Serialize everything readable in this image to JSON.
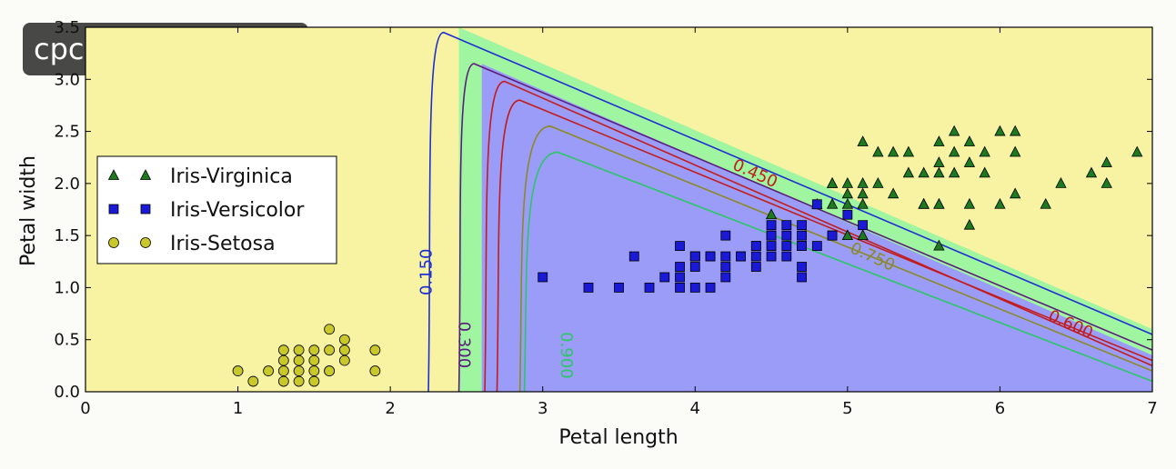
{
  "watermark": "cpc-jiuyou.com.cn",
  "chart_data": {
    "type": "scatter",
    "xlabel": "Petal length",
    "ylabel": "Petal width",
    "xlim": [
      0,
      7
    ],
    "ylim": [
      0,
      3.5
    ],
    "x_ticks": [
      "0",
      "1",
      "2",
      "3",
      "4",
      "5",
      "6",
      "7"
    ],
    "y_ticks": [
      "0.0",
      "0.5",
      "1.0",
      "1.5",
      "2.0",
      "2.5",
      "3.0",
      "3.5"
    ],
    "legend_position": "left",
    "decision_regions": [
      {
        "class": "Iris-Setosa",
        "color": "#f7f3a3"
      },
      {
        "class": "Iris-Versicolor",
        "color": "#9b9cf7"
      },
      {
        "class": "Iris-Virginica",
        "color": "#a0f5a0"
      }
    ],
    "contours": [
      {
        "label": "0.150",
        "color": "#1f2fd1"
      },
      {
        "label": "0.300",
        "color": "#5a1f7a"
      },
      {
        "label": "0.450",
        "color": "#c21d1d"
      },
      {
        "label": "0.600",
        "color": "#c21d1d"
      },
      {
        "label": "0.750",
        "color": "#8a8a2a"
      },
      {
        "label": "0.900",
        "color": "#2ec46a"
      }
    ],
    "series": [
      {
        "name": "Iris-Virginica",
        "marker": "triangle",
        "color": "#1e7a1e",
        "points": [
          [
            6.0,
            2.5
          ],
          [
            5.1,
            1.9
          ],
          [
            5.9,
            2.1
          ],
          [
            5.6,
            1.8
          ],
          [
            5.8,
            2.2
          ],
          [
            6.6,
            2.1
          ],
          [
            4.5,
            1.7
          ],
          [
            6.3,
            1.8
          ],
          [
            5.8,
            1.8
          ],
          [
            6.1,
            2.5
          ],
          [
            5.1,
            2.0
          ],
          [
            5.3,
            1.9
          ],
          [
            5.5,
            2.1
          ],
          [
            5.0,
            2.0
          ],
          [
            5.1,
            2.4
          ],
          [
            5.3,
            2.3
          ],
          [
            5.5,
            1.8
          ],
          [
            6.7,
            2.2
          ],
          [
            6.9,
            2.3
          ],
          [
            5.0,
            1.5
          ],
          [
            5.7,
            2.3
          ],
          [
            4.9,
            2.0
          ],
          [
            6.7,
            2.0
          ],
          [
            4.9,
            1.8
          ],
          [
            5.7,
            2.1
          ],
          [
            6.0,
            1.8
          ],
          [
            4.8,
            1.8
          ],
          [
            5.6,
            2.1
          ],
          [
            5.8,
            1.6
          ],
          [
            6.4,
            2.0
          ],
          [
            5.6,
            2.2
          ],
          [
            5.1,
            1.5
          ],
          [
            5.6,
            1.4
          ],
          [
            6.1,
            2.3
          ],
          [
            5.6,
            2.4
          ],
          [
            5.5,
            1.8
          ],
          [
            5.4,
            2.1
          ],
          [
            5.2,
            2.3
          ],
          [
            5.0,
            1.9
          ],
          [
            5.2,
            2.0
          ],
          [
            5.4,
            2.3
          ],
          [
            6.1,
            1.9
          ],
          [
            4.9,
            2.0
          ],
          [
            5.7,
            2.5
          ],
          [
            5.9,
            2.3
          ],
          [
            5.5,
            1.8
          ],
          [
            5.1,
            1.8
          ],
          [
            5.8,
            2.4
          ],
          [
            5.6,
            1.8
          ],
          [
            5.0,
            1.8
          ]
        ]
      },
      {
        "name": "Iris-Versicolor",
        "marker": "square",
        "color": "#1a1ad6",
        "points": [
          [
            4.7,
            1.4
          ],
          [
            4.5,
            1.5
          ],
          [
            4.9,
            1.5
          ],
          [
            4.0,
            1.3
          ],
          [
            4.6,
            1.5
          ],
          [
            4.5,
            1.3
          ],
          [
            4.7,
            1.6
          ],
          [
            3.3,
            1.0
          ],
          [
            4.6,
            1.3
          ],
          [
            3.9,
            1.4
          ],
          [
            3.5,
            1.0
          ],
          [
            4.2,
            1.5
          ],
          [
            4.0,
            1.0
          ],
          [
            4.7,
            1.4
          ],
          [
            3.6,
            1.3
          ],
          [
            4.4,
            1.4
          ],
          [
            4.1,
            1.0
          ],
          [
            4.5,
            1.5
          ],
          [
            3.9,
            1.1
          ],
          [
            4.8,
            1.8
          ],
          [
            4.0,
            1.3
          ],
          [
            4.9,
            1.5
          ],
          [
            4.7,
            1.2
          ],
          [
            4.3,
            1.3
          ],
          [
            4.4,
            1.4
          ],
          [
            4.8,
            1.4
          ],
          [
            5.0,
            1.7
          ],
          [
            3.8,
            1.1
          ],
          [
            3.7,
            1.0
          ],
          [
            3.9,
            1.2
          ],
          [
            5.1,
            1.6
          ],
          [
            4.5,
            1.6
          ],
          [
            4.7,
            1.5
          ],
          [
            4.4,
            1.3
          ],
          [
            4.1,
            1.3
          ],
          [
            4.0,
            1.3
          ],
          [
            4.4,
            1.2
          ],
          [
            4.6,
            1.4
          ],
          [
            4.0,
            1.2
          ],
          [
            3.0,
            1.1
          ],
          [
            4.2,
            1.3
          ],
          [
            4.2,
            1.2
          ],
          [
            4.3,
            1.3
          ],
          [
            4.1,
            1.3
          ],
          [
            4.6,
            1.6
          ],
          [
            3.9,
            1.0
          ],
          [
            4.2,
            1.1
          ],
          [
            4.7,
            1.1
          ],
          [
            4.5,
            1.4
          ]
        ]
      },
      {
        "name": "Iris-Setosa",
        "marker": "circle",
        "color": "#c8c82a",
        "points": [
          [
            1.4,
            0.2
          ],
          [
            1.3,
            0.2
          ],
          [
            1.5,
            0.2
          ],
          [
            1.4,
            0.4
          ],
          [
            1.5,
            0.1
          ],
          [
            1.5,
            0.3
          ],
          [
            1.6,
            0.2
          ],
          [
            1.4,
            0.1
          ],
          [
            1.1,
            0.1
          ],
          [
            1.2,
            0.2
          ],
          [
            1.5,
            0.4
          ],
          [
            1.3,
            0.4
          ],
          [
            1.7,
            0.3
          ],
          [
            1.0,
            0.2
          ],
          [
            1.7,
            0.5
          ],
          [
            1.9,
            0.2
          ],
          [
            1.6,
            0.4
          ],
          [
            1.6,
            0.6
          ],
          [
            1.4,
            0.3
          ],
          [
            1.3,
            0.3
          ],
          [
            1.7,
            0.4
          ],
          [
            1.9,
            0.4
          ],
          [
            1.6,
            0.2
          ],
          [
            1.3,
            0.1
          ]
        ]
      }
    ]
  }
}
